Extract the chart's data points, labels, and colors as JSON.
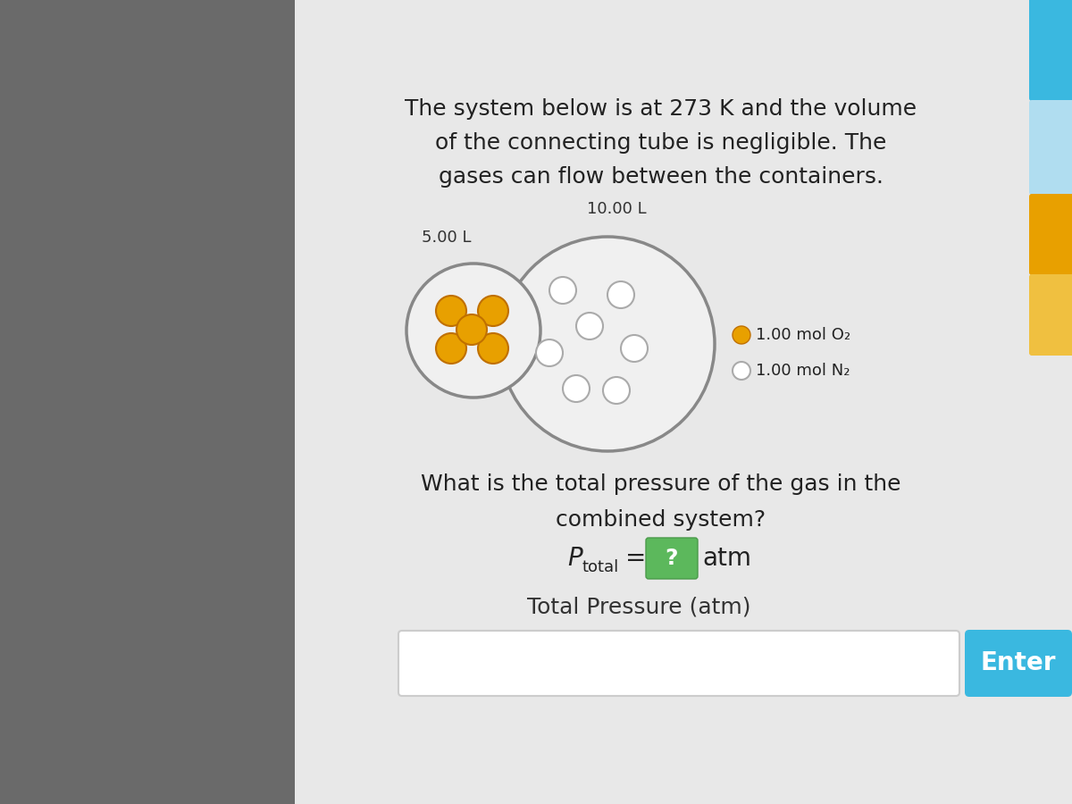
{
  "left_panel_color": "#6a6a6a",
  "right_panel_color": "#e8e8e8",
  "description_text_line1": "The system below is at 273 K and the volume",
  "description_text_line2": "of the connecting tube is negligible. The",
  "description_text_line3": "gases can flow between the containers.",
  "left_label": "5.00 L",
  "right_label": "10.00 L",
  "o2_color": "#E8A000",
  "o2_edge_color": "#c07000",
  "n2_fill_color": "#ffffff",
  "n2_edge_color": "#aaaaaa",
  "legend_o2_label": "1.00 mol O₂",
  "legend_n2_label": "1.00 mol N₂",
  "question_line1": "What is the total pressure of the gas in the",
  "question_line2": "combined system?",
  "input_label": "Total Pressure (atm)",
  "enter_button_color": "#3ab8e0",
  "enter_button_text": "Enter",
  "tab1_color": "#3ab8e0",
  "tab2_color": "#b0ddf0",
  "tab3_color": "#E8A000",
  "tab4_color": "#f0c040",
  "green_box_color": "#5cb85c",
  "container_edge_color": "#888888",
  "container_face_color": "#f0f0f0"
}
